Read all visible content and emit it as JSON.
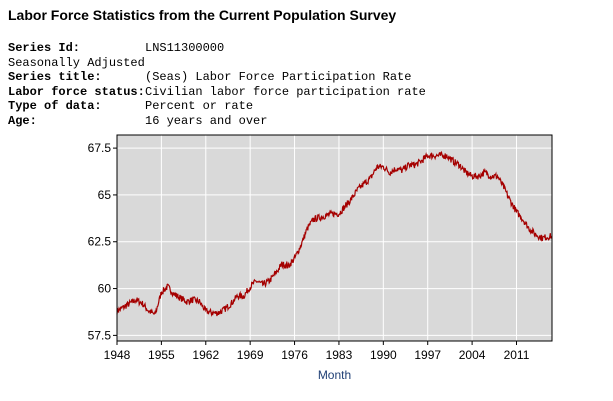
{
  "page": {
    "title": "Labor Force Statistics from the Current Population Survey"
  },
  "meta": {
    "series_id_label": "Series Id:",
    "series_id_value": "LNS11300000",
    "adjustment": "Seasonally Adjusted",
    "series_title_label": "Series title:",
    "series_title_value": "(Seas) Labor Force Participation Rate",
    "status_label": "Labor force status:",
    "status_value": "Civilian labor force participation rate",
    "type_label": "Type of data:",
    "type_value": "Percent or rate",
    "age_label": "Age:",
    "age_value": "16 years and over"
  },
  "chart_data": {
    "type": "line",
    "title": "",
    "xlabel": "Month",
    "ylabel": "",
    "xlim": [
      1948,
      2016.6
    ],
    "ylim": [
      57.2,
      68.2
    ],
    "x_ticks": [
      1948,
      1955,
      1962,
      1969,
      1976,
      1983,
      1990,
      1997,
      2004,
      2011
    ],
    "x_tick_labels": [
      "1948",
      "1955",
      "1962",
      "1969",
      "1976",
      "1983",
      "1990",
      "1997",
      "2004",
      "2011"
    ],
    "y_ticks": [
      57.5,
      60,
      62.5,
      65,
      67.5
    ],
    "y_tick_labels": [
      "57.5",
      "60",
      "62.5",
      "65",
      "67.5"
    ],
    "grid": true,
    "colors": {
      "line": "#a50000",
      "plot_bg": "#d9d9d9",
      "grid": "#ffffff"
    },
    "series": [
      {
        "x": [
          1948,
          1949,
          1950,
          1951,
          1952,
          1953,
          1954,
          1955,
          1956,
          1957,
          1958,
          1959,
          1960,
          1961,
          1962,
          1963,
          1964,
          1965,
          1966,
          1967,
          1968,
          1969,
          1970,
          1971,
          1972,
          1973,
          1974,
          1975,
          1976,
          1977,
          1978,
          1979,
          1980,
          1981,
          1982,
          1983,
          1984,
          1985,
          1986,
          1987,
          1988,
          1989,
          1990,
          1991,
          1992,
          1993,
          1994,
          1995,
          1996,
          1997,
          1998,
          1999,
          2000,
          2001,
          2002,
          2003,
          2004,
          2005,
          2006,
          2007,
          2008,
          2009,
          2010,
          2011,
          2012,
          2013,
          2014,
          2015,
          2016.5
        ],
        "y": [
          58.8,
          59.0,
          59.2,
          59.4,
          59.2,
          58.8,
          58.6,
          59.8,
          60.1,
          59.7,
          59.5,
          59.3,
          59.4,
          59.3,
          58.8,
          58.7,
          58.7,
          58.9,
          59.2,
          59.6,
          59.6,
          60.1,
          60.4,
          60.2,
          60.4,
          60.8,
          61.3,
          61.2,
          61.6,
          62.3,
          63.2,
          63.7,
          63.8,
          63.9,
          64.0,
          64.0,
          64.4,
          64.8,
          65.3,
          65.6,
          65.9,
          66.5,
          66.5,
          66.2,
          66.4,
          66.3,
          66.6,
          66.6,
          66.8,
          67.1,
          67.1,
          67.1,
          67.1,
          66.8,
          66.6,
          66.2,
          66.0,
          66.0,
          66.2,
          66.0,
          66.0,
          65.4,
          64.7,
          64.1,
          63.7,
          63.2,
          62.9,
          62.7,
          62.8
        ]
      }
    ]
  }
}
